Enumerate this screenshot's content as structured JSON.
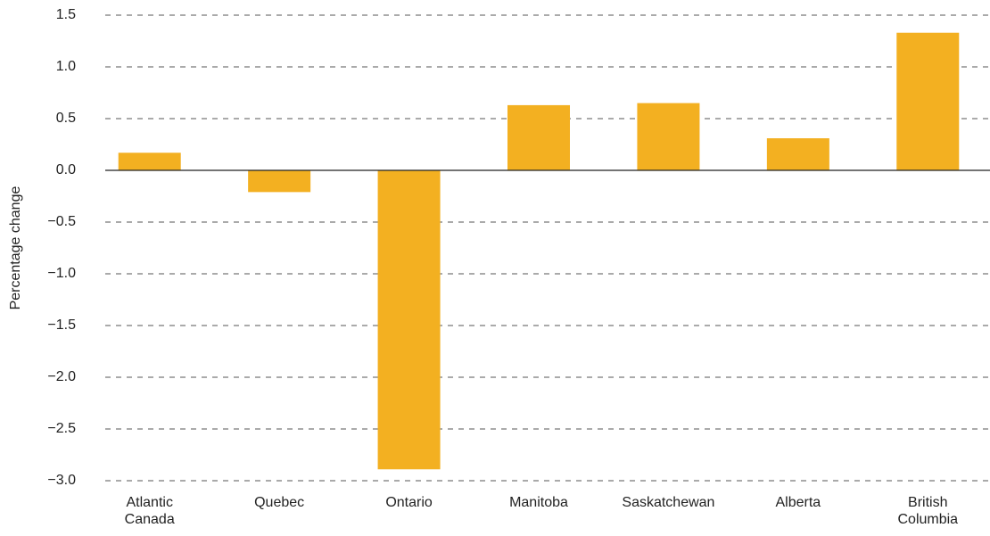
{
  "chart_data": {
    "type": "bar",
    "y_label": "Percentage change",
    "categories": [
      "Atlantic\nCanada",
      "Quebec",
      "Ontario",
      "Manitoba",
      "Saskatchewan",
      "Alberta",
      "British\nColumbia"
    ],
    "values": [
      0.17,
      -0.21,
      -2.89,
      0.63,
      0.65,
      0.31,
      1.33
    ],
    "color": "#f3b021",
    "ylim": [
      -3.0,
      1.5
    ],
    "yticks": [
      {
        "value": -3.0,
        "label": "−3.0"
      },
      {
        "value": -2.5,
        "label": "−2.5"
      },
      {
        "value": -2.0,
        "label": "−2.0"
      },
      {
        "value": -1.5,
        "label": "−1.5"
      },
      {
        "value": -1.0,
        "label": "−1.0"
      },
      {
        "value": -0.5,
        "label": "−0.5"
      },
      {
        "value": 0.0,
        "label": "0.0"
      },
      0.5,
      {
        "value": 1.0,
        "label": "1.0"
      },
      1.5
    ],
    "grid": true
  }
}
